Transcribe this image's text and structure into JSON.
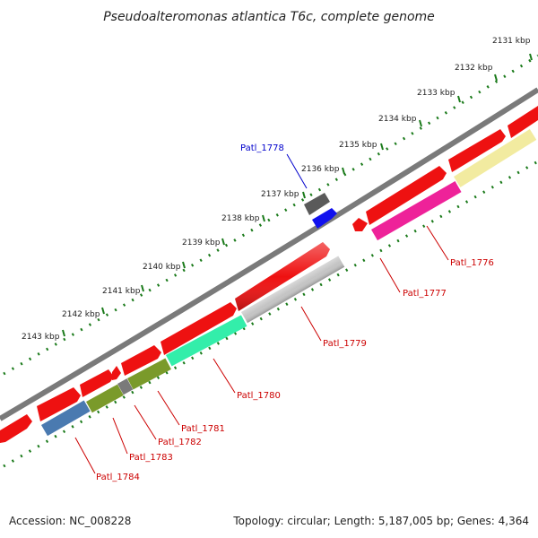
{
  "title": "Pseudoalteromonas atlantica T6c, complete genome",
  "footer": {
    "accession": "Accession: NC_008228",
    "summary": "Topology: circular; Length: 5,187,005 bp; Genes: 4,364"
  },
  "ticks": [
    "2131 kbp",
    "2132 kbp",
    "2133 kbp",
    "2134 kbp",
    "2135 kbp",
    "2136 kbp",
    "2137 kbp",
    "2138 kbp",
    "2139 kbp",
    "2140 kbp",
    "2141 kbp",
    "2142 kbp",
    "2143 kbp"
  ],
  "gene_labels": [
    {
      "id": "Patl_1778",
      "color": "#0000cc"
    },
    {
      "id": "Patl_1776",
      "color": "#cc0000"
    },
    {
      "id": "Patl_1777",
      "color": "#cc0000"
    },
    {
      "id": "Patl_1779",
      "color": "#cc0000"
    },
    {
      "id": "Patl_1780",
      "color": "#cc0000"
    },
    {
      "id": "Patl_1781",
      "color": "#cc0000"
    },
    {
      "id": "Patl_1782",
      "color": "#cc0000"
    },
    {
      "id": "Patl_1783",
      "color": "#cc0000"
    },
    {
      "id": "Patl_1784",
      "color": "#cc0000"
    }
  ],
  "colors": {
    "cds": "#ee1111",
    "backbone": "#808080",
    "tick": "#1a7a1a",
    "genes": {
      "Patl_1776": "#ee2299",
      "Patl_1777": "#ee1111",
      "Patl_1778": "#1111ee",
      "Patl_1779": "#c4c4c4",
      "Patl_1780": "#33eeaa",
      "Patl_1781": "#7a9a2a",
      "Patl_1782": "#7a7a7a",
      "Patl_1783": "#7a9a2a",
      "Patl_1784": "#4a7ab0",
      "Patl_1775": "#f2eba0"
    }
  }
}
